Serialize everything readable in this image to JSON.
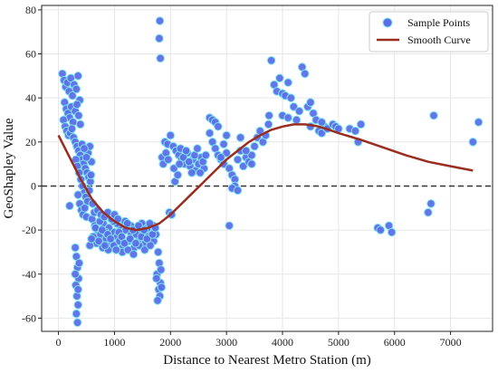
{
  "chart_data": {
    "type": "scatter",
    "xlabel": "Distance to Nearest Metro Station (m)",
    "ylabel": "GeoShapley Value",
    "xlim": [
      -300,
      7750
    ],
    "ylim": [
      -66,
      82
    ],
    "x_ticks": [
      0,
      1000,
      2000,
      3000,
      4000,
      5000,
      6000,
      7000
    ],
    "y_ticks": [
      -60,
      -40,
      -20,
      0,
      20,
      40,
      60,
      80
    ],
    "grid": true,
    "reference_line": {
      "y": 0,
      "style": "dashed"
    },
    "legend": {
      "placement": "top-right",
      "entries": [
        "Sample Points",
        "Smooth Curve"
      ]
    },
    "colors": {
      "points": "#5b6ee8",
      "point_glow": "#7fe5f0",
      "curve": "#9b2d20",
      "grid": "#e6e6e6"
    },
    "series": [
      {
        "name": "Sample Points",
        "kind": "scatter",
        "points": [
          [
            70,
            51
          ],
          [
            100,
            48
          ],
          [
            130,
            45
          ],
          [
            160,
            47
          ],
          [
            190,
            43
          ],
          [
            220,
            49
          ],
          [
            250,
            41
          ],
          [
            280,
            46
          ],
          [
            320,
            44
          ],
          [
            350,
            50
          ],
          [
            380,
            39
          ],
          [
            110,
            38
          ],
          [
            140,
            35
          ],
          [
            170,
            33
          ],
          [
            200,
            31
          ],
          [
            230,
            36
          ],
          [
            260,
            29
          ],
          [
            300,
            34
          ],
          [
            330,
            37
          ],
          [
            360,
            32
          ],
          [
            390,
            28
          ],
          [
            90,
            30
          ],
          [
            120,
            27
          ],
          [
            150,
            25
          ],
          [
            180,
            23
          ],
          [
            210,
            24
          ],
          [
            240,
            26
          ],
          [
            270,
            22
          ],
          [
            300,
            20
          ],
          [
            330,
            18
          ],
          [
            360,
            16
          ],
          [
            390,
            14
          ],
          [
            420,
            12
          ],
          [
            450,
            10
          ],
          [
            480,
            8
          ],
          [
            510,
            6
          ],
          [
            540,
            4
          ],
          [
            570,
            2
          ],
          [
            310,
            12
          ],
          [
            340,
            9
          ],
          [
            370,
            6
          ],
          [
            400,
            3
          ],
          [
            430,
            0
          ],
          [
            460,
            -3
          ],
          [
            490,
            -5
          ],
          [
            520,
            -7
          ],
          [
            550,
            -2
          ],
          [
            580,
            5
          ],
          [
            610,
            -8
          ],
          [
            350,
            -4
          ],
          [
            380,
            -8
          ],
          [
            410,
            -11
          ],
          [
            440,
            -13
          ],
          [
            470,
            -10
          ],
          [
            500,
            -14
          ],
          [
            530,
            15
          ],
          [
            560,
            18
          ],
          [
            590,
            11
          ],
          [
            200,
            -9
          ],
          [
            420,
            19
          ],
          [
            460,
            17
          ],
          [
            500,
            13
          ],
          [
            600,
            -15
          ],
          [
            650,
            -18
          ],
          [
            700,
            -20
          ],
          [
            750,
            -22
          ],
          [
            800,
            -17
          ],
          [
            850,
            -24
          ],
          [
            900,
            -19
          ],
          [
            950,
            -26
          ],
          [
            1000,
            -21
          ],
          [
            1050,
            -23
          ],
          [
            1100,
            -18
          ],
          [
            1150,
            -27
          ],
          [
            1200,
            -20
          ],
          [
            1250,
            -25
          ],
          [
            1300,
            -22
          ],
          [
            1350,
            -28
          ],
          [
            1400,
            -19
          ],
          [
            1450,
            -24
          ],
          [
            1500,
            -21
          ],
          [
            1550,
            -26
          ],
          [
            1600,
            -23
          ],
          [
            1650,
            -20
          ],
          [
            1700,
            -25
          ],
          [
            620,
            -23
          ],
          [
            680,
            -26
          ],
          [
            740,
            -16
          ],
          [
            790,
            -28
          ],
          [
            840,
            -21
          ],
          [
            890,
            -29
          ],
          [
            940,
            -15
          ],
          [
            990,
            -27
          ],
          [
            1040,
            -17
          ],
          [
            1090,
            -25
          ],
          [
            1140,
            -30
          ],
          [
            1190,
            -16
          ],
          [
            1240,
            -29
          ],
          [
            1290,
            -18
          ],
          [
            1340,
            -31
          ],
          [
            1390,
            -22
          ],
          [
            1440,
            -27
          ],
          [
            1490,
            -17
          ],
          [
            1540,
            -29
          ],
          [
            1590,
            -19
          ],
          [
            1640,
            -27
          ],
          [
            1690,
            -18
          ],
          [
            1740,
            -22
          ],
          [
            660,
            -19
          ],
          [
            720,
            -25
          ],
          [
            780,
            -20
          ],
          [
            830,
            -27
          ],
          [
            880,
            -22
          ],
          [
            930,
            -24
          ],
          [
            980,
            -16
          ],
          [
            1030,
            -29
          ],
          [
            1080,
            -21
          ],
          [
            1130,
            -23
          ],
          [
            1180,
            -26
          ],
          [
            1230,
            -17
          ],
          [
            1280,
            -24
          ],
          [
            1330,
            -20
          ],
          [
            1380,
            -26
          ],
          [
            1430,
            -18
          ],
          [
            1480,
            -23
          ],
          [
            1530,
            -20
          ],
          [
            1580,
            -24
          ],
          [
            1630,
            -17
          ],
          [
            1680,
            -22
          ],
          [
            1730,
            -19
          ],
          [
            560,
            -27
          ],
          [
            590,
            -24
          ],
          [
            640,
            -12
          ],
          [
            700,
            -11
          ],
          [
            760,
            -13
          ],
          [
            820,
            -14
          ],
          [
            880,
            -12
          ],
          [
            950,
            -15
          ],
          [
            1000,
            -13
          ],
          [
            1060,
            -15
          ],
          [
            300,
            -28
          ],
          [
            320,
            -32
          ],
          [
            340,
            -37
          ],
          [
            360,
            -42
          ],
          [
            310,
            -45
          ],
          [
            330,
            -50
          ],
          [
            350,
            -54
          ],
          [
            320,
            -58
          ],
          [
            340,
            -62
          ],
          [
            370,
            -35
          ],
          [
            300,
            -40
          ],
          [
            350,
            -47
          ],
          [
            1780,
            -30
          ],
          [
            1800,
            -35
          ],
          [
            1760,
            -40
          ],
          [
            1820,
            -44
          ],
          [
            1790,
            -47
          ],
          [
            1810,
            -50
          ],
          [
            1770,
            -52
          ],
          [
            1830,
            -38
          ],
          [
            1750,
            -42
          ],
          [
            1840,
            -46
          ],
          [
            1810,
            75
          ],
          [
            1800,
            67
          ],
          [
            1820,
            58
          ],
          [
            1850,
            13
          ],
          [
            1900,
            20
          ],
          [
            1950,
            19
          ],
          [
            2000,
            23
          ],
          [
            2050,
            18
          ],
          [
            2100,
            16
          ],
          [
            2150,
            14
          ],
          [
            2200,
            12
          ],
          [
            2250,
            10
          ],
          [
            2300,
            15
          ],
          [
            2350,
            9
          ],
          [
            2400,
            12
          ],
          [
            2450,
            7
          ],
          [
            2500,
            10
          ],
          [
            2550,
            13
          ],
          [
            2600,
            8
          ],
          [
            1870,
            10
          ],
          [
            1920,
            15
          ],
          [
            1980,
            -12
          ],
          [
            2020,
            -13
          ],
          [
            2080,
            2
          ],
          [
            2130,
            5
          ],
          [
            2180,
            17
          ],
          [
            2230,
            13
          ],
          [
            2280,
            16
          ],
          [
            2330,
            11
          ],
          [
            2380,
            6
          ],
          [
            2430,
            14
          ],
          [
            2480,
            17
          ],
          [
            2530,
            6
          ],
          [
            2580,
            11
          ],
          [
            2630,
            14
          ],
          [
            1960,
            12
          ],
          [
            2060,
            8
          ],
          [
            2160,
            10
          ],
          [
            2700,
            31
          ],
          [
            2750,
            30
          ],
          [
            2800,
            29
          ],
          [
            2850,
            27
          ],
          [
            2700,
            24
          ],
          [
            2750,
            20
          ],
          [
            2800,
            17
          ],
          [
            2850,
            14
          ],
          [
            2900,
            12
          ],
          [
            2950,
            10
          ],
          [
            3000,
            15
          ],
          [
            3050,
            8
          ],
          [
            3100,
            5
          ],
          [
            3150,
            3
          ],
          [
            3200,
            12
          ],
          [
            3250,
            16
          ],
          [
            3300,
            9
          ],
          [
            3350,
            13
          ],
          [
            3400,
            11
          ],
          [
            3450,
            14
          ],
          [
            3500,
            18
          ],
          [
            3550,
            22
          ],
          [
            3600,
            25
          ],
          [
            3650,
            20
          ],
          [
            3700,
            23
          ],
          [
            3750,
            28
          ],
          [
            3760,
            32
          ],
          [
            3050,
            -18
          ],
          [
            3150,
            0
          ],
          [
            3250,
            22
          ],
          [
            3350,
            16
          ],
          [
            3450,
            10
          ],
          [
            2950,
            19
          ],
          [
            3000,
            23
          ],
          [
            3100,
            -1
          ],
          [
            3200,
            -2
          ],
          [
            2900,
            13
          ],
          [
            3800,
            57
          ],
          [
            3850,
            46
          ],
          [
            3900,
            43
          ],
          [
            3950,
            49
          ],
          [
            4000,
            42
          ],
          [
            4050,
            41
          ],
          [
            4100,
            47
          ],
          [
            4150,
            40
          ],
          [
            4200,
            36
          ],
          [
            4300,
            34
          ],
          [
            4350,
            54
          ],
          [
            4400,
            51
          ],
          [
            4450,
            36
          ],
          [
            4500,
            38
          ],
          [
            4550,
            33
          ],
          [
            4600,
            30
          ],
          [
            4650,
            25
          ],
          [
            4700,
            24
          ],
          [
            4750,
            27
          ],
          [
            4800,
            26
          ],
          [
            4900,
            28
          ],
          [
            4950,
            27
          ],
          [
            5000,
            26
          ],
          [
            5200,
            26
          ],
          [
            5300,
            25
          ],
          [
            5350,
            20
          ],
          [
            5400,
            28
          ],
          [
            4000,
            32
          ],
          [
            4100,
            31
          ],
          [
            4250,
            30
          ],
          [
            4500,
            27
          ],
          [
            4700,
            29
          ],
          [
            5700,
            -19
          ],
          [
            5750,
            -20
          ],
          [
            5900,
            -18
          ],
          [
            5950,
            -21
          ],
          [
            6600,
            -12
          ],
          [
            6650,
            -8
          ],
          [
            6700,
            32
          ],
          [
            7400,
            20
          ],
          [
            7500,
            29
          ]
        ]
      },
      {
        "name": "Smooth Curve",
        "kind": "line",
        "x": [
          0,
          200,
          400,
          600,
          800,
          1000,
          1200,
          1400,
          1600,
          1800,
          2000,
          2200,
          2400,
          2600,
          2800,
          3000,
          3200,
          3400,
          3600,
          3800,
          4000,
          4200,
          4400,
          4600,
          4800,
          5000,
          5400,
          5800,
          6200,
          6600,
          7000,
          7400
        ],
        "y": [
          23,
          13,
          3,
          -6,
          -12,
          -16,
          -19,
          -20,
          -19,
          -17,
          -13,
          -8,
          -3,
          2,
          7,
          12,
          16,
          20,
          23,
          25.5,
          27,
          28,
          28,
          27.3,
          25.8,
          24,
          21,
          17.5,
          14,
          11,
          9,
          7
        ]
      }
    ]
  }
}
